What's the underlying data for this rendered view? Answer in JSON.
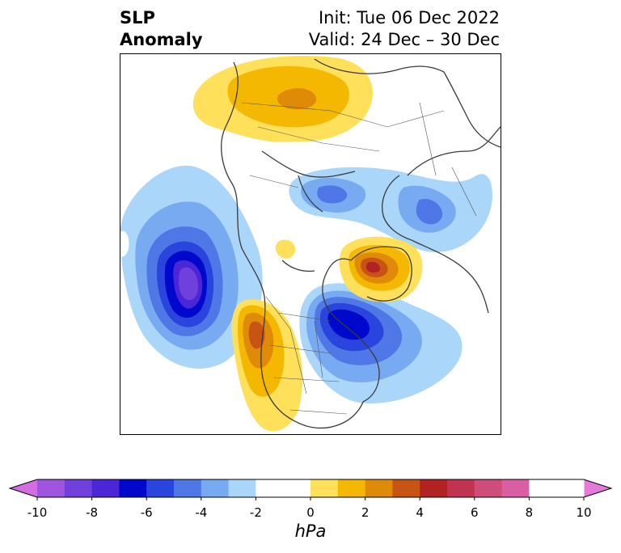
{
  "title": {
    "left_line1": "SLP",
    "left_line2": "Anomaly",
    "right_line1": "Init: Tue 06 Dec 2022",
    "right_line2": "Valid: 24 Dec – 30 Dec"
  },
  "colorbar": {
    "units": "hPa",
    "min": -10,
    "max": 10,
    "step": 1,
    "extend": "both",
    "ticks": [
      "-10",
      "-8",
      "-6",
      "-4",
      "-2",
      "0",
      "2",
      "4",
      "6",
      "8",
      "10"
    ],
    "colors": [
      "#9f55e0",
      "#7040dc",
      "#4a26d6",
      "#0008cc",
      "#2a44de",
      "#4f78e6",
      "#78aaf2",
      "#aad6fa",
      "#ffffff",
      "#ffffff",
      "#fee05a",
      "#f4b800",
      "#e08a0a",
      "#c85414",
      "#b22222",
      "#c2334f",
      "#cf4d7a",
      "#da5ea3"
    ],
    "under_color": "#d46ee0",
    "over_color": "#e57ad8"
  },
  "map": {
    "projection": "north-polar-stereographic",
    "anomalies": [
      {
        "region": "Gulf of Alaska / NE Pacific",
        "sign": "negative",
        "peak_hPa": -9
      },
      {
        "region": "Hudson Bay / Eastern Canada",
        "sign": "negative",
        "peak_hPa": -6
      },
      {
        "region": "Scandinavia / Barents Sea",
        "sign": "negative",
        "peak_hPa": -4
      },
      {
        "region": "Western Siberia",
        "sign": "negative",
        "peak_hPa": -4
      },
      {
        "region": "Greenland",
        "sign": "positive",
        "peak_hPa": 6
      },
      {
        "region": "Western North America",
        "sign": "positive",
        "peak_hPa": 4
      },
      {
        "region": "Eastern Asia / Siberia",
        "sign": "positive",
        "peak_hPa": 4
      }
    ]
  }
}
